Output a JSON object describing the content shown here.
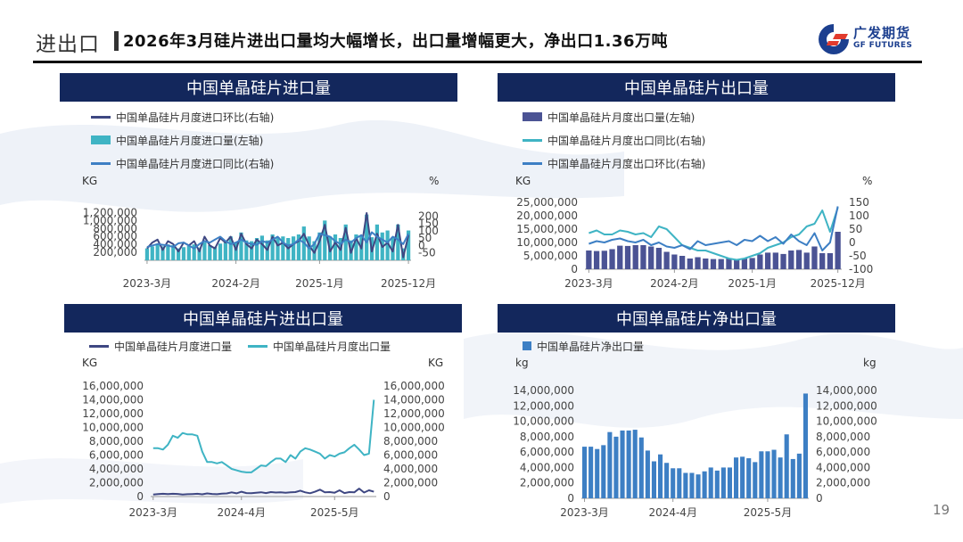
{
  "header": {
    "section": "进出口",
    "headline": "2026年3月硅片进出口量均大幅增长，出口量增幅更大，净出口1.36万吨",
    "logo_cn": "广发期货",
    "logo_en": "GF FUTURES",
    "logo_color": "#1c3f8f",
    "logo_accent": "#e23b2e"
  },
  "page_number": "19",
  "colors": {
    "navy": "#13275c",
    "dark_line": "#3e4782",
    "teal": "#3fb4c4",
    "blue": "#3d7fc4",
    "bar_dark": "#4b5394",
    "bar_blue": "#3d7fc4"
  },
  "chart_data": [
    {
      "id": "c1",
      "type": "bar",
      "title": "中国单晶硅片进口量",
      "unit_left": "KG",
      "unit_right": "%",
      "x_ticks": [
        "2023-3月",
        "2024-2月",
        "2025-1月",
        "2025-12月"
      ],
      "y_left_ticks": [
        "200,000",
        "400,000",
        "600,000",
        "800,000",
        "1,000,000",
        "1,200,000"
      ],
      "y_right_ticks": [
        "-50",
        "0",
        "50",
        "100",
        "150",
        "200"
      ],
      "ylim_left": [
        0,
        1300000
      ],
      "ylim_right": [
        -100,
        250
      ],
      "series": [
        {
          "name": "中国单晶硅片月度进口环比(右轴)",
          "kind": "line",
          "axis": "right",
          "values": [
            -20,
            20,
            40,
            -30,
            30,
            10,
            -40,
            20,
            0,
            30,
            -40,
            60,
            0,
            -20,
            50,
            20,
            60,
            -30,
            80,
            10,
            -20,
            40,
            10,
            -30,
            60,
            0,
            20,
            -20,
            10,
            30,
            80,
            0,
            -50,
            30,
            140,
            -40,
            20,
            -30,
            120,
            -50,
            50,
            -20,
            220,
            -40,
            80,
            -10,
            20,
            -40,
            140,
            -80,
            70
          ]
        },
        {
          "name": "中国单晶硅片月度进口量(左轴)",
          "kind": "bar",
          "axis": "left",
          "values": [
            300000,
            350000,
            400000,
            350000,
            400000,
            380000,
            300000,
            330000,
            360000,
            400000,
            320000,
            450000,
            380000,
            340000,
            420000,
            450000,
            600000,
            460000,
            700000,
            500000,
            480000,
            560000,
            620000,
            500000,
            650000,
            580000,
            600000,
            560000,
            600000,
            650000,
            850000,
            600000,
            480000,
            700000,
            1000000,
            600000,
            650000,
            560000,
            900000,
            500000,
            650000,
            600000,
            1150000,
            580000,
            900000,
            700000,
            750000,
            580000,
            900000,
            300000,
            750000
          ]
        },
        {
          "name": "中国单晶硅片月度进口同比(右轴)",
          "kind": "line",
          "axis": "right",
          "values": [
            -10,
            0,
            10,
            5,
            0,
            -10,
            15,
            20,
            0,
            -20,
            10,
            30,
            20,
            40,
            60,
            30,
            10,
            20,
            40,
            20,
            10,
            5,
            30,
            20,
            40,
            60,
            20,
            0,
            10,
            40,
            20,
            -20,
            10,
            80,
            70,
            60,
            30,
            10,
            40,
            20,
            50,
            70,
            20,
            90,
            60,
            40,
            20,
            60,
            40,
            10,
            80
          ]
        }
      ]
    },
    {
      "id": "c2",
      "type": "bar",
      "title": "中国单晶硅片出口量",
      "unit_left": "KG",
      "unit_right": "%",
      "x_ticks": [
        "2023-3月",
        "2024-2月",
        "2025-1月",
        "2025-12月"
      ],
      "y_left_ticks": [
        "0",
        "5,000,000",
        "10,000,000",
        "15,000,000",
        "20,000,000",
        "25,000,000"
      ],
      "y_right_ticks": [
        "-100",
        "-50",
        "0",
        "50",
        "100",
        "150"
      ],
      "ylim_left": [
        0,
        25000000
      ],
      "ylim_right": [
        -100,
        150
      ],
      "series": [
        {
          "name": "中国单晶硅片月度出口量(左轴)",
          "kind": "bar",
          "axis": "left",
          "values": [
            7000000,
            6800000,
            6900000,
            7500000,
            8800000,
            8700000,
            9000000,
            9000000,
            8500000,
            8000000,
            6500000,
            5500000,
            5000000,
            4000000,
            4500000,
            4000000,
            3800000,
            3800000,
            4000000,
            3600000,
            4000000,
            4200000,
            5500000,
            6200000,
            6200000,
            5700000,
            7000000,
            7200000,
            6200000,
            8500000,
            6000000,
            6000000,
            14000000
          ]
        },
        {
          "name": "中国单晶硅片月度出口同比(右轴)",
          "kind": "line",
          "axis": "right",
          "values": [
            35,
            45,
            30,
            30,
            45,
            40,
            30,
            35,
            20,
            60,
            50,
            20,
            -10,
            -20,
            -30,
            -30,
            -40,
            -50,
            -60,
            -65,
            -60,
            -50,
            -40,
            -20,
            -10,
            0,
            20,
            30,
            60,
            70,
            120,
            40,
            130
          ]
        },
        {
          "name": "中国单晶硅片月度出口环比(右轴)",
          "kind": "line",
          "axis": "right",
          "values": [
            -5,
            5,
            0,
            10,
            15,
            5,
            0,
            10,
            -10,
            0,
            -15,
            -20,
            -10,
            -25,
            5,
            -10,
            -5,
            0,
            5,
            -10,
            10,
            5,
            25,
            5,
            20,
            -5,
            30,
            5,
            -10,
            35,
            -30,
            0,
            135
          ]
        }
      ]
    },
    {
      "id": "c3",
      "type": "line",
      "title": "中国单晶硅片进出口量",
      "unit_left": "KG",
      "unit_right": "KG",
      "x_ticks": [
        "2023-3月",
        "2024-4月",
        "2025-5月"
      ],
      "y_left_ticks": [
        "0",
        "2,000,000",
        "4,000,000",
        "6,000,000",
        "8,000,000",
        "10,000,000",
        "12,000,000",
        "14,000,000",
        "16,000,000"
      ],
      "y_right_ticks": [
        "0",
        "2,000,000",
        "4,000,000",
        "6,000,000",
        "8,000,000",
        "10,000,000",
        "12,000,000",
        "14,000,000",
        "16,000,000"
      ],
      "ylim": [
        0,
        16000000
      ],
      "series": [
        {
          "name": "中国单晶硅片月度进口量",
          "kind": "line",
          "values": [
            300000,
            350000,
            400000,
            350000,
            400000,
            380000,
            300000,
            330000,
            360000,
            400000,
            320000,
            450000,
            380000,
            340000,
            420000,
            450000,
            600000,
            460000,
            700000,
            500000,
            480000,
            560000,
            620000,
            500000,
            650000,
            580000,
            600000,
            560000,
            600000,
            650000,
            850000,
            600000,
            480000,
            700000,
            1000000,
            600000,
            650000,
            560000,
            900000,
            500000,
            650000,
            600000,
            1150000,
            580000,
            900000,
            700000
          ]
        },
        {
          "name": "中国单晶硅片月度出口量",
          "kind": "line",
          "values": [
            7000000,
            7000000,
            6800000,
            7500000,
            8800000,
            8500000,
            9200000,
            9000000,
            9000000,
            8800000,
            6500000,
            5000000,
            5000000,
            4800000,
            5000000,
            4500000,
            4000000,
            3800000,
            3600000,
            3500000,
            3500000,
            4000000,
            4500000,
            4400000,
            5000000,
            5500000,
            5500000,
            5000000,
            6000000,
            5500000,
            6500000,
            7000000,
            6800000,
            6500000,
            6200000,
            5500000,
            6000000,
            5800000,
            6200000,
            6400000,
            7000000,
            7500000,
            6800000,
            6000000,
            6200000,
            14000000
          ]
        }
      ]
    },
    {
      "id": "c4",
      "type": "bar",
      "title": "中国单晶硅片净出口量",
      "unit_left": "kg",
      "unit_right": "kg",
      "x_ticks": [
        "2023-3月",
        "2024-4月",
        "2025-5月"
      ],
      "y_left_ticks": [
        "0",
        "2,000,000",
        "4,000,000",
        "6,000,000",
        "8,000,000",
        "10,000,000",
        "12,000,000",
        "14,000,000"
      ],
      "y_right_ticks": [
        "0",
        "2,000,000",
        "4,000,000",
        "6,000,000",
        "8,000,000",
        "10,000,000",
        "12,000,000",
        "14,000,000"
      ],
      "ylim": [
        0,
        14000000
      ],
      "series": [
        {
          "name": "中国单晶硅片净出口量",
          "kind": "bar",
          "values": [
            6700000,
            6700000,
            6400000,
            6900000,
            8600000,
            8000000,
            8800000,
            8800000,
            8900000,
            7900000,
            6200000,
            4800000,
            5700000,
            4600000,
            3900000,
            3900000,
            3300000,
            3300000,
            3100000,
            3500000,
            4000000,
            3600000,
            4000000,
            4000000,
            5300000,
            5400000,
            5200000,
            4700000,
            6100000,
            6100000,
            6300000,
            5300000,
            8300000,
            5100000,
            5800000,
            13600000
          ]
        }
      ]
    }
  ]
}
